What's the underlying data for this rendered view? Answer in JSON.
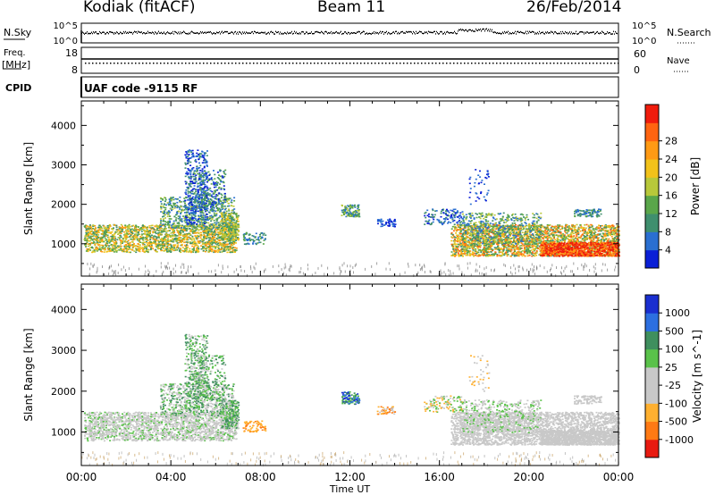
{
  "header": {
    "radar": "Kodiak (fitACF)",
    "beam": "Beam 11",
    "date": "26/Feb/2014"
  },
  "strip_panels": {
    "nsky": {
      "left_label": "N.Sky",
      "right_label": "N.Search",
      "left_ticks": [
        "10^5",
        "10^0"
      ],
      "right_ticks": [
        "10^5",
        "10^0"
      ]
    },
    "freq": {
      "left_label_line1": "Freq.",
      "left_label_line2": "[MHz]",
      "right_label": "Nave",
      "left_ticks": [
        "18",
        "8"
      ],
      "right_ticks": [
        "60",
        "0"
      ]
    },
    "cpid": {
      "label": "CPID",
      "text": "UAF code -9115 RF"
    }
  },
  "chart_data": [
    {
      "type": "heatmap",
      "panel": "power",
      "xlabel": "Time UT",
      "ylabel": "Slant Range [km]",
      "x_ticks": [
        "00:00",
        "04:00",
        "08:00",
        "12:00",
        "16:00",
        "20:00",
        "00:00"
      ],
      "x_range_hours": [
        0,
        24
      ],
      "y_ticks": [
        1000,
        2000,
        3000,
        4000
      ],
      "ylim": [
        180,
        4620
      ],
      "colorbar": {
        "label": "Power [dB]",
        "ticks": [
          "4",
          "8",
          "12",
          "16",
          "20",
          "24",
          "28"
        ],
        "colors": [
          "#0a1fd6",
          "#2a6fd1",
          "#3f8f6e",
          "#5aa64a",
          "#b8c83a",
          "#f2c21a",
          "#ff9a14",
          "#ff6410",
          "#f01c0c"
        ]
      }
    },
    {
      "type": "heatmap",
      "panel": "velocity",
      "xlabel": "Time UT",
      "ylabel": "Slant Range [km]",
      "x_ticks": [
        "00:00",
        "04:00",
        "08:00",
        "12:00",
        "16:00",
        "20:00",
        "00:00"
      ],
      "x_range_hours": [
        0,
        24
      ],
      "y_ticks": [
        1000,
        2000,
        3000,
        4000
      ],
      "ylim": [
        180,
        4620
      ],
      "colorbar": {
        "label": "Velocity [m s^-1]",
        "ticks": [
          "1000",
          "500",
          "100",
          "25",
          "-25",
          "-100",
          "-500",
          "-1000"
        ],
        "colors": [
          "#1a2fd0",
          "#2c6fe0",
          "#3f8f5e",
          "#5ac24a",
          "#c8c8c8",
          "#c8c8c8",
          "#ffb030",
          "#ff7a14",
          "#e81a10"
        ]
      }
    }
  ]
}
